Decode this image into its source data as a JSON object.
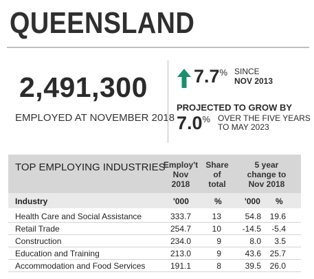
{
  "title": "QUEENSLAND",
  "employed": {
    "value": "2,491,300",
    "caption": "EMPLOYED AT NOVEMBER 2018"
  },
  "growth_since": {
    "value": "7.7",
    "unit": "%",
    "line1": "SINCE",
    "line2": "NOV 2013",
    "arrow_color": "#1a8f6e"
  },
  "projection": {
    "label": "PROJECTED TO GROW BY",
    "value": "7.0",
    "unit": "%",
    "line1": "OVER THE FIVE YEARS",
    "line2": "TO MAY 2023"
  },
  "table": {
    "title": "TOP EMPLOYING INDUSTRIES",
    "col_employ": [
      "Employ't",
      "Nov",
      "2018"
    ],
    "col_share": [
      "Share",
      "of",
      "total"
    ],
    "col_change": [
      "5 year",
      "change to",
      "Nov 2018"
    ],
    "sub": {
      "industry": "Industry",
      "employ_unit": "'000",
      "share_unit": "%",
      "change_unit": "'000",
      "change_pct_unit": "%"
    },
    "rows": [
      {
        "industry": "Health Care and Social Assistance",
        "employ": "333.7",
        "share": "13",
        "change": "54.8",
        "change_pct": "19.6"
      },
      {
        "industry": "Retail Trade",
        "employ": "254.7",
        "share": "10",
        "change": "-14.5",
        "change_pct": "-5.4"
      },
      {
        "industry": "Construction",
        "employ": "234.0",
        "share": "9",
        "change": "8.0",
        "change_pct": "3.5"
      },
      {
        "industry": "Education and Training",
        "employ": "213.0",
        "share": "9",
        "change": "43.6",
        "change_pct": "25.7"
      },
      {
        "industry": "Accommodation and Food Services",
        "employ": "191.1",
        "share": "8",
        "change": "39.5",
        "change_pct": "26.0"
      }
    ]
  }
}
